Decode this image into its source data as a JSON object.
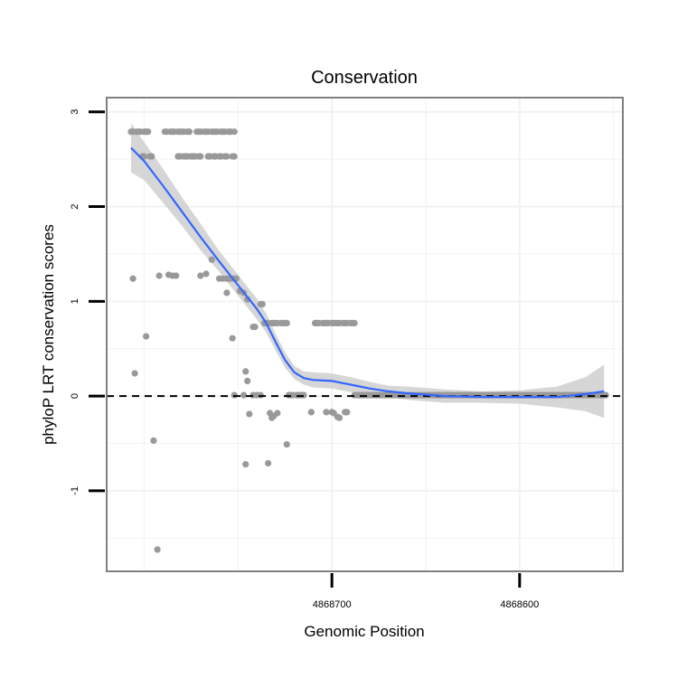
{
  "chart_data": {
    "type": "scatter",
    "title": "Conservation",
    "xlabel": "Genomic Position",
    "ylabel": "phyloP LRT conservation scores",
    "x_reversed": true,
    "xlim": [
      4868820,
      4868545
    ],
    "ylim": [
      -1.85,
      3.15
    ],
    "x_ticks": [
      4868700,
      4868600
    ],
    "x_tick_labels": [
      "4868700",
      "4868600"
    ],
    "y_ticks": [
      -1,
      0,
      1,
      2,
      3
    ],
    "y_tick_labels": [
      "-1",
      "0",
      "1",
      "2",
      "3"
    ],
    "grid": true,
    "reference_line": {
      "y": 0,
      "style": "dashed"
    },
    "colors": {
      "points": "#999999",
      "smooth": "#3366FF",
      "ribbon": "#CCCCCC",
      "panel_border": "#808080",
      "grid": "#F2F2F2"
    },
    "series": [
      {
        "kind": "points",
        "points": [
          [
            4868807,
            2.79
          ],
          [
            4868806,
            2.79
          ],
          [
            4868804,
            2.79
          ],
          [
            4868803,
            2.79
          ],
          [
            4868802,
            2.79
          ],
          [
            4868800,
            2.79
          ],
          [
            4868799,
            2.79
          ],
          [
            4868798,
            2.79
          ],
          [
            4868789,
            2.79
          ],
          [
            4868788,
            2.79
          ],
          [
            4868786,
            2.79
          ],
          [
            4868785,
            2.79
          ],
          [
            4868784,
            2.79
          ],
          [
            4868782,
            2.79
          ],
          [
            4868781,
            2.79
          ],
          [
            4868780,
            2.79
          ],
          [
            4868779,
            2.79
          ],
          [
            4868777,
            2.79
          ],
          [
            4868776,
            2.79
          ],
          [
            4868772,
            2.79
          ],
          [
            4868771,
            2.79
          ],
          [
            4868770,
            2.79
          ],
          [
            4868768,
            2.79
          ],
          [
            4868767,
            2.79
          ],
          [
            4868766,
            2.79
          ],
          [
            4868764,
            2.79
          ],
          [
            4868763,
            2.79
          ],
          [
            4868762,
            2.79
          ],
          [
            4868761,
            2.79
          ],
          [
            4868759,
            2.79
          ],
          [
            4868758,
            2.79
          ],
          [
            4868757,
            2.79
          ],
          [
            4868755,
            2.79
          ],
          [
            4868754,
            2.79
          ],
          [
            4868752,
            2.79
          ],
          [
            4868801,
            2.53
          ],
          [
            4868800,
            2.53
          ],
          [
            4868797,
            2.53
          ],
          [
            4868796,
            2.53
          ],
          [
            4868782,
            2.53
          ],
          [
            4868781,
            2.53
          ],
          [
            4868779,
            2.53
          ],
          [
            4868778,
            2.53
          ],
          [
            4868777,
            2.53
          ],
          [
            4868775,
            2.53
          ],
          [
            4868774,
            2.53
          ],
          [
            4868773,
            2.53
          ],
          [
            4868771,
            2.53
          ],
          [
            4868770,
            2.53
          ],
          [
            4868766,
            2.53
          ],
          [
            4868765,
            2.53
          ],
          [
            4868763,
            2.53
          ],
          [
            4868762,
            2.53
          ],
          [
            4868760,
            2.53
          ],
          [
            4868759,
            2.53
          ],
          [
            4868757,
            2.53
          ],
          [
            4868756,
            2.53
          ],
          [
            4868753,
            2.53
          ],
          [
            4868752,
            2.53
          ],
          [
            4868806,
            1.24
          ],
          [
            4868792,
            1.27
          ],
          [
            4868787,
            1.28
          ],
          [
            4868785,
            1.27
          ],
          [
            4868783,
            1.27
          ],
          [
            4868770,
            1.27
          ],
          [
            4868767,
            1.29
          ],
          [
            4868764,
            1.44
          ],
          [
            4868760,
            1.24
          ],
          [
            4868758,
            1.24
          ],
          [
            4868756,
            1.24
          ],
          [
            4868755,
            1.24
          ],
          [
            4868753,
            1.24
          ],
          [
            4868751,
            1.24
          ],
          [
            4868756,
            1.09
          ],
          [
            4868749,
            1.11
          ],
          [
            4868747,
            1.09
          ],
          [
            4868745,
            1.02
          ],
          [
            4868738,
            0.97
          ],
          [
            4868737,
            0.97
          ],
          [
            4868742,
            0.73
          ],
          [
            4868741,
            0.73
          ],
          [
            4868736,
            0.77
          ],
          [
            4868735,
            0.77
          ],
          [
            4868734,
            0.77
          ],
          [
            4868732,
            0.77
          ],
          [
            4868731,
            0.77
          ],
          [
            4868730,
            0.77
          ],
          [
            4868729,
            0.77
          ],
          [
            4868727,
            0.77
          ],
          [
            4868726,
            0.77
          ],
          [
            4868725,
            0.77
          ],
          [
            4868724,
            0.77
          ],
          [
            4868709,
            0.77
          ],
          [
            4868708,
            0.77
          ],
          [
            4868707,
            0.77
          ],
          [
            4868705,
            0.77
          ],
          [
            4868704,
            0.77
          ],
          [
            4868703,
            0.77
          ],
          [
            4868702,
            0.77
          ],
          [
            4868700,
            0.77
          ],
          [
            4868699,
            0.77
          ],
          [
            4868698,
            0.77
          ],
          [
            4868697,
            0.77
          ],
          [
            4868696,
            0.77
          ],
          [
            4868694,
            0.77
          ],
          [
            4868693,
            0.77
          ],
          [
            4868692,
            0.77
          ],
          [
            4868690,
            0.77
          ],
          [
            4868689,
            0.77
          ],
          [
            4868688,
            0.77
          ],
          [
            4868799,
            0.63
          ],
          [
            4868753,
            0.61
          ],
          [
            4868805,
            0.24
          ],
          [
            4868746,
            0.26
          ],
          [
            4868745,
            0.16
          ],
          [
            4868752,
            0.01
          ],
          [
            4868747,
            0.01
          ],
          [
            4868742,
            0.01
          ],
          [
            4868740,
            0.01
          ],
          [
            4868738,
            0.01
          ],
          [
            4868723,
            0.01
          ],
          [
            4868722,
            0.01
          ],
          [
            4868721,
            0.01
          ],
          [
            4868719,
            0.01
          ],
          [
            4868718,
            0.01
          ],
          [
            4868717,
            0.01
          ],
          [
            4868716,
            0.01
          ],
          [
            4868715,
            0.01
          ],
          [
            4868744,
            -0.19
          ],
          [
            4868733,
            -0.18
          ],
          [
            4868732,
            -0.23
          ],
          [
            4868731,
            -0.21
          ],
          [
            4868729,
            -0.18
          ],
          [
            4868711,
            -0.17
          ],
          [
            4868703,
            -0.17
          ],
          [
            4868700,
            -0.17
          ],
          [
            4868699,
            -0.18
          ],
          [
            4868697,
            -0.22
          ],
          [
            4868696,
            -0.23
          ],
          [
            4868693,
            -0.17
          ],
          [
            4868692,
            -0.17
          ],
          [
            4868795,
            -0.47
          ],
          [
            4868724,
            -0.51
          ],
          [
            4868746,
            -0.72
          ],
          [
            4868734,
            -0.71
          ],
          [
            4868793,
            -1.62
          ]
        ]
      },
      {
        "kind": "baseline_run",
        "y": 0.01,
        "x_from": 4868688,
        "x_to": 4868554,
        "step": 1.3
      },
      {
        "kind": "smooth",
        "x": [
          4868807,
          4868800,
          4868790,
          4868780,
          4868770,
          4868760,
          4868750,
          4868740,
          4868735,
          4868730,
          4868725,
          4868720,
          4868715,
          4868710,
          4868700,
          4868690,
          4868680,
          4868670,
          4868660,
          4868640,
          4868620,
          4868600,
          4868580,
          4868565,
          4868555
        ],
        "y": [
          2.62,
          2.48,
          2.22,
          1.95,
          1.68,
          1.42,
          1.17,
          0.92,
          0.77,
          0.57,
          0.38,
          0.25,
          0.19,
          0.17,
          0.16,
          0.12,
          0.08,
          0.05,
          0.03,
          0.0,
          -0.01,
          -0.01,
          -0.01,
          0.02,
          0.05
        ],
        "ci_upper": [
          2.88,
          2.68,
          2.4,
          2.1,
          1.82,
          1.53,
          1.28,
          1.03,
          0.87,
          0.66,
          0.46,
          0.32,
          0.26,
          0.25,
          0.24,
          0.2,
          0.15,
          0.11,
          0.1,
          0.07,
          0.05,
          0.06,
          0.1,
          0.2,
          0.33
        ],
        "ci_lower": [
          2.36,
          2.28,
          2.04,
          1.8,
          1.54,
          1.31,
          1.06,
          0.81,
          0.67,
          0.48,
          0.3,
          0.18,
          0.12,
          0.09,
          0.08,
          0.04,
          0.01,
          -0.01,
          -0.04,
          -0.07,
          -0.07,
          -0.08,
          -0.12,
          -0.16,
          -0.23
        ]
      }
    ]
  }
}
